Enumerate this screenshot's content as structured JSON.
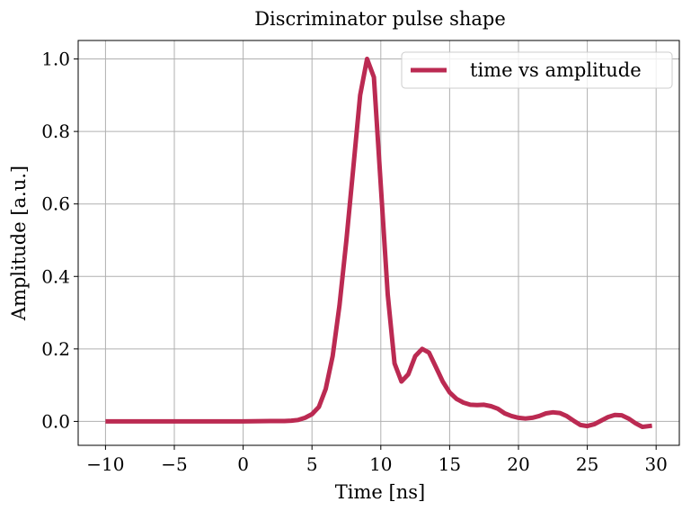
{
  "chart_data": {
    "type": "line",
    "title": "Discriminator pulse shape",
    "xlabel": "Time [ns]",
    "ylabel": "Amplitude [a.u.]",
    "x": [
      -10,
      -5,
      0,
      2,
      3,
      3.5,
      4,
      4.5,
      5,
      5.5,
      6,
      6.5,
      7,
      7.5,
      8,
      8.5,
      9,
      9.5,
      10,
      10.5,
      11,
      11.5,
      12,
      12.5,
      13,
      13.5,
      14,
      14.5,
      15,
      15.5,
      16,
      16.5,
      17,
      17.5,
      18,
      18.5,
      19,
      19.5,
      20,
      20.5,
      21,
      21.5,
      22,
      22.5,
      23,
      23.5,
      24,
      24.5,
      25,
      25.5,
      26,
      26.5,
      27,
      27.5,
      28,
      28.5,
      29,
      29.7
    ],
    "series": [
      {
        "name": "time vs amplitude",
        "color": "#bb2a52",
        "values": [
          0,
          0,
          0,
          0.001,
          0.001,
          0.002,
          0.004,
          0.01,
          0.02,
          0.04,
          0.09,
          0.18,
          0.32,
          0.5,
          0.7,
          0.9,
          1.0,
          0.95,
          0.65,
          0.35,
          0.16,
          0.11,
          0.13,
          0.18,
          0.2,
          0.19,
          0.15,
          0.11,
          0.08,
          0.062,
          0.052,
          0.046,
          0.045,
          0.046,
          0.042,
          0.035,
          0.022,
          0.015,
          0.01,
          0.008,
          0.01,
          0.015,
          0.022,
          0.025,
          0.023,
          0.015,
          0.002,
          -0.01,
          -0.013,
          -0.008,
          0.002,
          0.012,
          0.018,
          0.017,
          0.008,
          -0.005,
          -0.015,
          -0.012
        ]
      }
    ],
    "xlim": [
      -11.985,
      31.685
    ],
    "ylim": [
      -0.066,
      1.051
    ],
    "xticks": [
      {
        "value": -10,
        "label": "−10"
      },
      {
        "value": -5,
        "label": "−5"
      },
      0,
      5,
      10,
      15,
      20,
      25,
      30
    ],
    "yticks": [
      {
        "value": 0,
        "label": "0.0"
      },
      {
        "value": 0.2,
        "label": "0.2"
      },
      {
        "value": 0.4,
        "label": "0.4"
      },
      {
        "value": 0.6,
        "label": "0.6"
      },
      {
        "value": 0.8,
        "label": "0.8"
      },
      {
        "value": 1,
        "label": "1.0"
      }
    ],
    "grid": true,
    "legend": "upper right"
  }
}
